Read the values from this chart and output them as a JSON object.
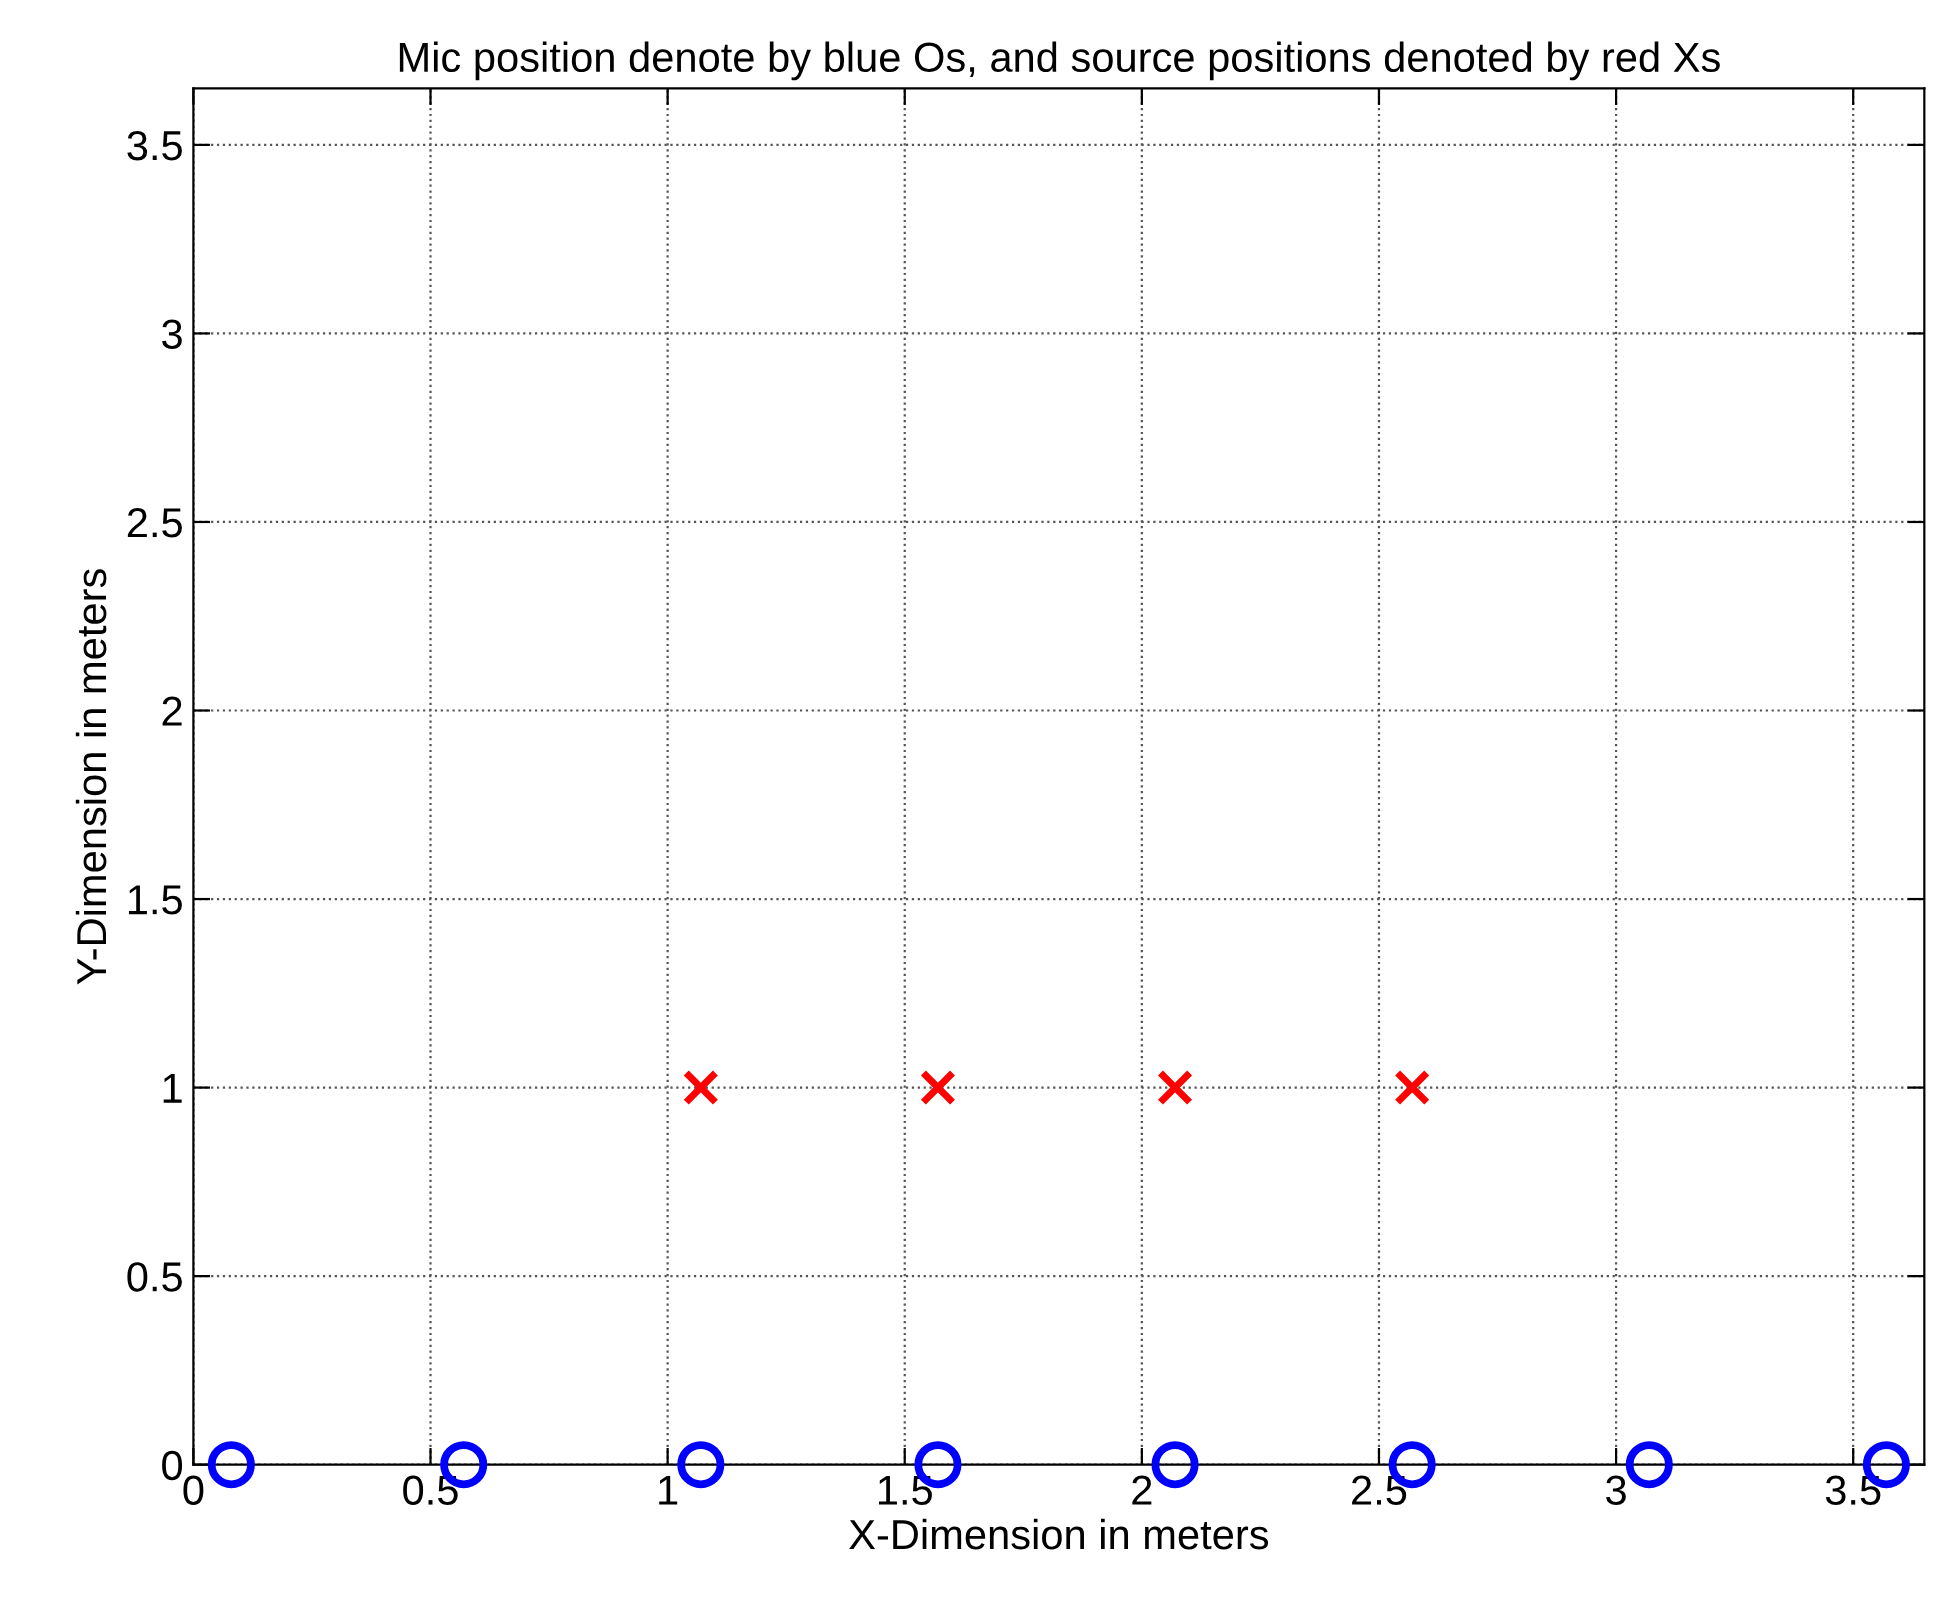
{
  "chart_data": {
    "type": "scatter",
    "title": "Mic position denote by blue Os, and source positions denoted by red Xs",
    "xlabel": "X-Dimension in meters",
    "ylabel": "Y-Dimension in meters",
    "series": [
      {
        "color": "#0000ff",
        "marker": "circle",
        "x": [
          0.08,
          0.57,
          1.07,
          1.57,
          2.07,
          2.57,
          3.07,
          3.57
        ],
        "values": [
          0,
          0,
          0,
          0,
          0,
          0,
          0,
          0
        ]
      },
      {
        "color": "#ff0000",
        "marker": "cross",
        "x": [
          1.07,
          1.57,
          2.07,
          2.57
        ],
        "values": [
          1,
          1,
          1,
          1
        ]
      }
    ],
    "xlim": [
      0,
      3.65
    ],
    "ylim": [
      0,
      3.65
    ],
    "xticks": [
      0,
      0.5,
      1,
      1.5,
      2,
      2.5,
      3,
      3.5
    ],
    "yticks": [
      0,
      0.5,
      1,
      1.5,
      2,
      2.5,
      3,
      3.5
    ],
    "grid": true
  }
}
